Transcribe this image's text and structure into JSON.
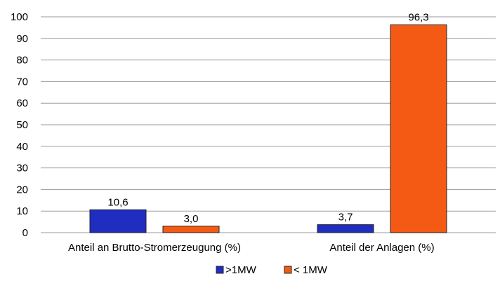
{
  "chart_data": {
    "type": "bar",
    "categories": [
      "Anteil an Brutto-Stromerzeugung (%)",
      "Anteil der Anlagen (%)"
    ],
    "series": [
      {
        "name": ">1MW",
        "values": [
          10.6,
          3.7
        ],
        "labels": [
          "10,6",
          "3,7"
        ],
        "color": "#1f2dc0"
      },
      {
        "name": "< 1MW",
        "values": [
          3.0,
          96.3
        ],
        "labels": [
          "3,0",
          "96,3"
        ],
        "color": "#f55a14"
      }
    ],
    "ylim": [
      0,
      100
    ],
    "yticks": [
      0,
      10,
      20,
      30,
      40,
      50,
      60,
      70,
      80,
      90,
      100
    ],
    "grid": true,
    "legend": "bottom",
    "gridline_color": "#9a9a9a",
    "bar_outline_color": "#222222"
  }
}
